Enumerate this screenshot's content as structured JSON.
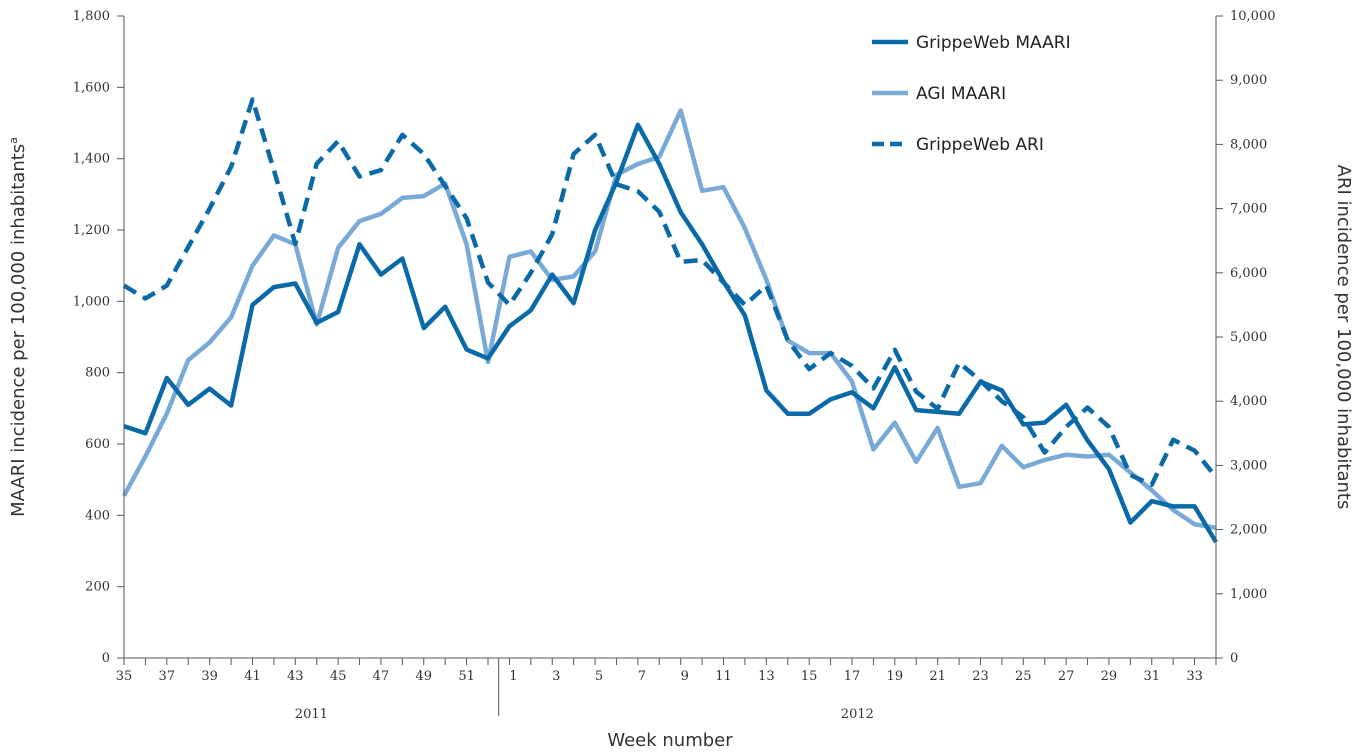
{
  "chart_data": {
    "type": "line",
    "x": [
      "35",
      "36",
      "37",
      "38",
      "39",
      "40",
      "41",
      "42",
      "43",
      "44",
      "45",
      "46",
      "47",
      "48",
      "49",
      "50",
      "51",
      "52",
      "1",
      "2",
      "3",
      "4",
      "5",
      "6",
      "7",
      "8",
      "9",
      "10",
      "11",
      "12",
      "13",
      "14",
      "15",
      "16",
      "17",
      "18",
      "19",
      "20",
      "21",
      "22",
      "23",
      "24",
      "25",
      "26",
      "27",
      "28",
      "29",
      "30",
      "31",
      "32",
      "33",
      "34"
    ],
    "x_tick_labels": [
      "35",
      "37",
      "39",
      "41",
      "43",
      "45",
      "47",
      "49",
      "51",
      "1",
      "3",
      "5",
      "7",
      "9",
      "11",
      "13",
      "15",
      "17",
      "19",
      "21",
      "23",
      "25",
      "27",
      "29",
      "31",
      "33"
    ],
    "year_labels": [
      "2011",
      "2012"
    ],
    "xlabel": "Week number",
    "ylabel_left": "MAARI incidence per 100,000 inhabitants",
    "ylabel_left_superscript": "a",
    "ylabel_right": "ARI incidence per 100,000 inhabitants",
    "ylim_left": [
      0,
      1800
    ],
    "ylim_right": [
      0,
      10000
    ],
    "yticks_left": [
      "0",
      "200",
      "400",
      "600",
      "800",
      "1,000",
      "1,200",
      "1,400",
      "1,600",
      "1,800"
    ],
    "yticks_right": [
      "0",
      "1,000",
      "2,000",
      "3,000",
      "4,000",
      "5,000",
      "6,000",
      "7,000",
      "8,000",
      "9,000",
      "10,000"
    ],
    "grid": false,
    "legend_position": "top-right",
    "series": [
      {
        "name": "GrippeWeb MAARI",
        "axis": "left",
        "style": "solid",
        "color": "#0a6aa8",
        "values": [
          650,
          630,
          785,
          710,
          755,
          708,
          990,
          1040,
          1050,
          940,
          970,
          1160,
          1075,
          1120,
          925,
          985,
          865,
          840,
          930,
          975,
          1075,
          995,
          1200,
          1335,
          1495,
          1385,
          1250,
          1160,
          1055,
          960,
          750,
          685,
          685,
          725,
          745,
          700,
          815,
          695,
          690,
          685,
          775,
          750,
          655,
          660,
          710,
          610,
          530,
          380,
          440,
          425,
          425,
          325
        ]
      },
      {
        "name": "AGI MAARI",
        "axis": "left",
        "style": "solid",
        "color": "#79a9d6",
        "values": [
          455,
          565,
          685,
          835,
          885,
          955,
          1100,
          1185,
          1160,
          935,
          1150,
          1225,
          1245,
          1290,
          1295,
          1330,
          1160,
          830,
          1125,
          1140,
          1060,
          1070,
          1140,
          1355,
          1385,
          1405,
          1535,
          1310,
          1320,
          1205,
          1060,
          890,
          855,
          855,
          775,
          585,
          660,
          550,
          645,
          480,
          490,
          595,
          535,
          555,
          570,
          565,
          570,
          520,
          470,
          415,
          375,
          365
        ]
      },
      {
        "name": "GrippeWeb ARI",
        "axis": "right",
        "style": "dashed",
        "color": "#0a6aa8",
        "values": [
          5800,
          5600,
          5800,
          6400,
          7000,
          7650,
          8700,
          7600,
          6450,
          7700,
          8050,
          7500,
          7600,
          8150,
          7850,
          7350,
          6850,
          5850,
          5500,
          6000,
          6600,
          7850,
          8150,
          7380,
          7270,
          6950,
          6170,
          6200,
          5850,
          5500,
          5800,
          4950,
          4500,
          4750,
          4550,
          4200,
          4800,
          4150,
          3880,
          4600,
          4320,
          4000,
          3750,
          3200,
          3600,
          3900,
          3600,
          2850,
          2700,
          3400,
          3230,
          2820
        ]
      }
    ]
  }
}
